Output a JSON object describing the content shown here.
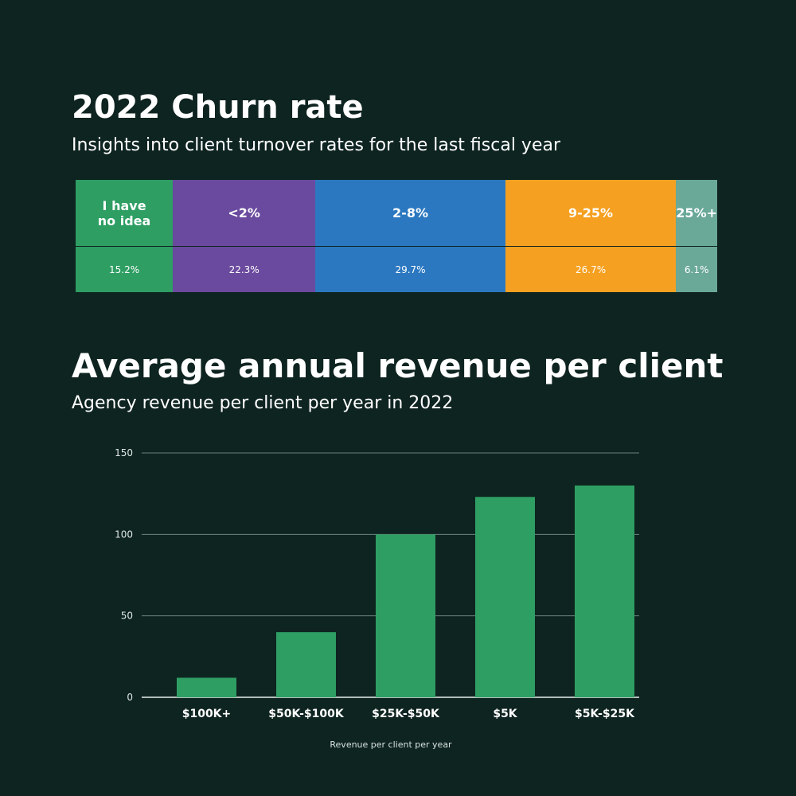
{
  "churn": {
    "title": "2022 Churn rate",
    "subtitle": "Insights into client turnover rates for the last fiscal year",
    "columns": [
      {
        "label": "I have no idea",
        "value": "15.2%",
        "pct": 15.2,
        "color": "#2e9e63"
      },
      {
        "label": "<2%",
        "value": "22.3%",
        "pct": 22.3,
        "color": "#6a4a9e"
      },
      {
        "label": "2-8%",
        "value": "29.7%",
        "pct": 29.7,
        "color": "#2b78c0"
      },
      {
        "label": "9-25%",
        "value": "26.7%",
        "pct": 26.7,
        "color": "#f5a020"
      },
      {
        "label": "25%+",
        "value": "6.1%",
        "pct": 6.1,
        "color": "#6aa898"
      }
    ]
  },
  "revenue": {
    "title": "Average annual revenue per client",
    "subtitle": "Agency revenue per client per year in 2022"
  },
  "chart_data": {
    "type": "bar",
    "categories": [
      "$100K+",
      "$50K-$100K",
      "$25K-$50K",
      "$5K",
      "$5K-$25K"
    ],
    "values": [
      12,
      40,
      100,
      123,
      130
    ],
    "xlabel": "Revenue per client per year",
    "ylabel": "",
    "ylim": [
      0,
      150
    ],
    "yticks": [
      0,
      50,
      100,
      150
    ],
    "grid": true,
    "bar_color": "#2e9e63"
  }
}
